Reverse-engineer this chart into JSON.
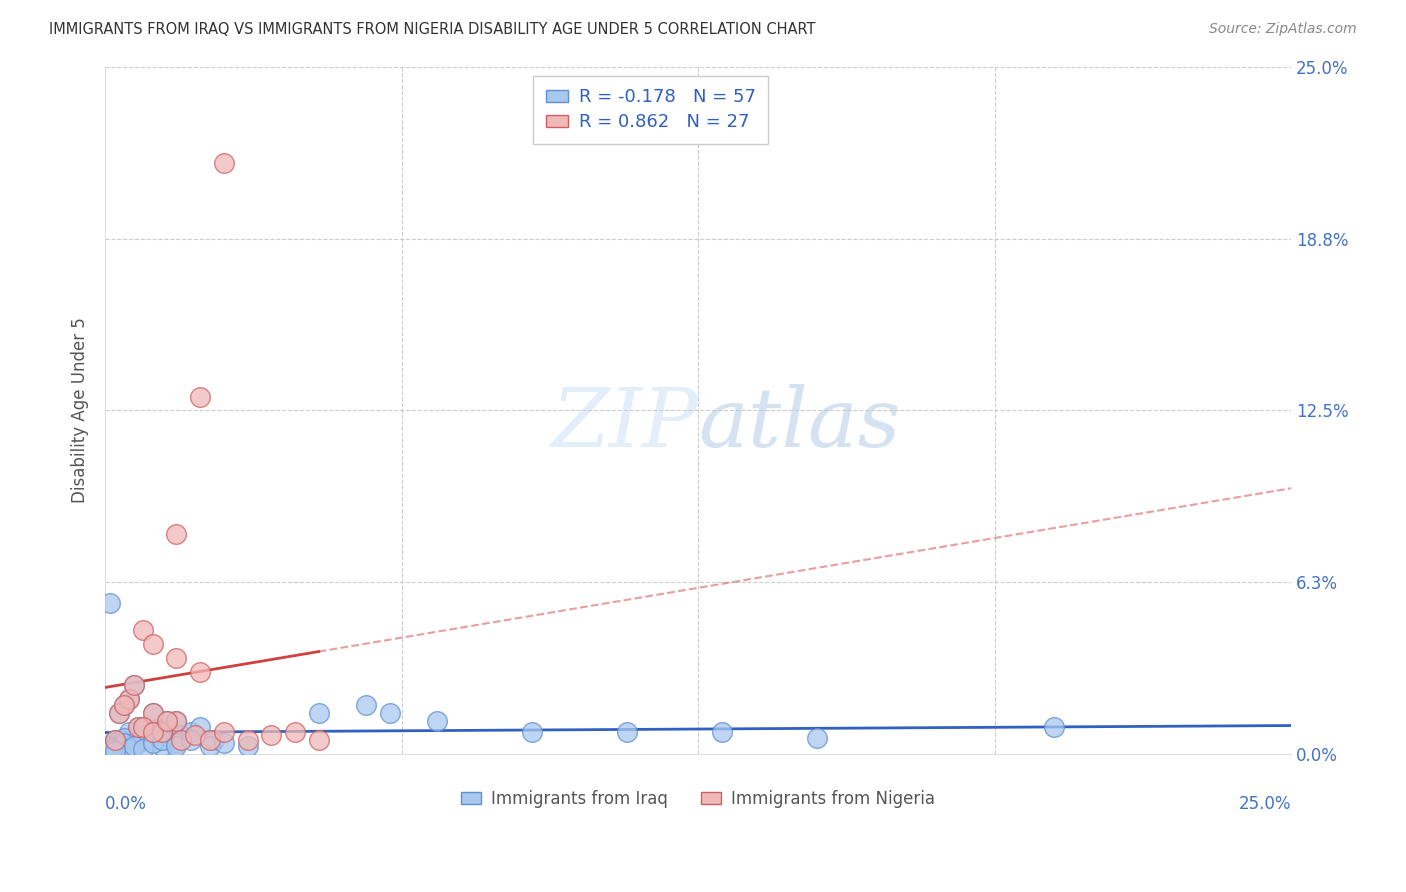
{
  "title": "IMMIGRANTS FROM IRAQ VS IMMIGRANTS FROM NIGERIA DISABILITY AGE UNDER 5 CORRELATION CHART",
  "source": "Source: ZipAtlas.com",
  "ylabel": "Disability Age Under 5",
  "iraq_color": "#a8c8f0",
  "nigeria_color": "#f0b8b8",
  "iraq_edge_color": "#6090d0",
  "nigeria_edge_color": "#d06060",
  "iraq_line_color": "#3060c0",
  "nigeria_line_color": "#d04040",
  "legend_iraq_label": "Immigrants from Iraq",
  "legend_nigeria_label": "Immigrants from Nigeria",
  "iraq_R": "-0.178",
  "iraq_N": "57",
  "nigeria_R": "0.862",
  "nigeria_N": "27",
  "xlim": [
    0,
    25
  ],
  "ylim": [
    0,
    25
  ],
  "ytick_values": [
    0,
    6.25,
    12.5,
    18.75,
    25.0
  ],
  "ytick_labels": [
    "0.0%",
    "6.3%",
    "12.5%",
    "18.8%",
    "25.0%"
  ],
  "xtick_values": [
    0,
    6.25,
    12.5,
    18.75,
    25.0
  ],
  "iraq_x": [
    0.3,
    0.5,
    0.7,
    1.0,
    1.2,
    1.5,
    0.2,
    0.4,
    0.6,
    0.8,
    1.0,
    1.3,
    0.1,
    0.3,
    0.5,
    0.7,
    0.9,
    1.1,
    1.4,
    1.6,
    0.2,
    0.4,
    0.6,
    0.8,
    1.0,
    1.2,
    1.5,
    1.8,
    2.0,
    2.3,
    0.1,
    0.2,
    0.3,
    0.4,
    0.5,
    0.6,
    0.8,
    1.0,
    1.2,
    1.5,
    1.8,
    2.2,
    2.5,
    3.0,
    4.5,
    5.5,
    6.0,
    7.0,
    9.0,
    11.0,
    13.0,
    15.0,
    20.0,
    0.05,
    0.1,
    0.15,
    0.2
  ],
  "iraq_y": [
    1.5,
    2.0,
    1.0,
    1.5,
    0.8,
    1.2,
    0.5,
    1.8,
    2.5,
    1.0,
    0.8,
    1.2,
    0.3,
    0.5,
    0.8,
    0.4,
    0.6,
    0.9,
    0.5,
    0.7,
    0.3,
    0.6,
    0.4,
    0.7,
    0.5,
    0.3,
    0.4,
    0.8,
    1.0,
    0.5,
    5.5,
    0.2,
    0.3,
    0.4,
    0.2,
    0.3,
    0.2,
    0.4,
    0.5,
    0.3,
    0.5,
    0.3,
    0.4,
    0.3,
    1.5,
    1.8,
    1.5,
    1.2,
    0.8,
    0.8,
    0.8,
    0.6,
    1.0,
    0.1,
    0.1,
    0.2,
    0.1
  ],
  "nigeria_x": [
    0.3,
    0.5,
    0.7,
    1.0,
    1.2,
    1.5,
    0.2,
    0.4,
    0.6,
    0.8,
    1.0,
    1.3,
    1.6,
    1.9,
    2.2,
    2.5,
    3.0,
    3.5,
    4.0,
    4.5,
    1.5,
    2.0,
    2.5,
    0.8,
    1.0,
    1.5,
    2.0
  ],
  "nigeria_y": [
    1.5,
    2.0,
    1.0,
    1.5,
    0.8,
    1.2,
    0.5,
    1.8,
    2.5,
    1.0,
    0.8,
    1.2,
    0.5,
    0.7,
    0.5,
    0.8,
    0.5,
    0.7,
    0.8,
    0.5,
    8.0,
    13.0,
    21.5,
    4.5,
    4.0,
    3.5,
    3.0
  ]
}
